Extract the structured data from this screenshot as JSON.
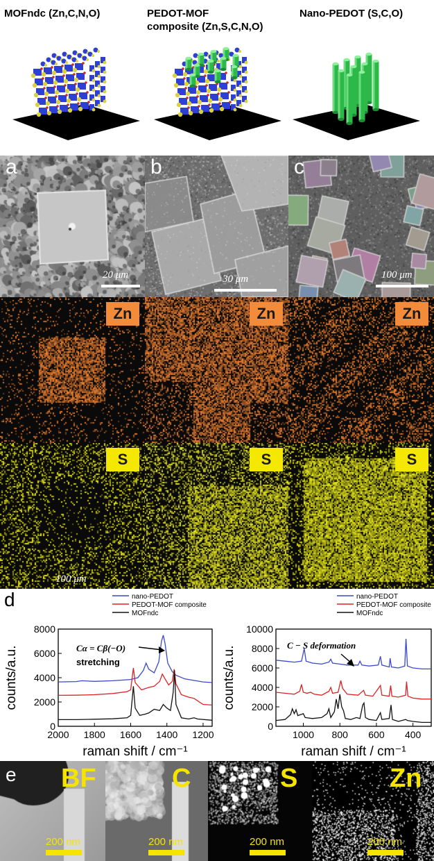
{
  "schematic": {
    "mof_label": "MOFndc (Zn,C,N,O)",
    "composite_label_line1": "PEDOT-MOF",
    "composite_label_line2": "composite (Zn,S,C,N,O)",
    "nano_label": "Nano-PEDOT (S,C,O)",
    "colors": {
      "frame": "#2e3fd6",
      "node": "#d9d23a",
      "linker": "#cc2a2a",
      "pedot": "#2db84a",
      "substrate": "#000000"
    }
  },
  "sem": {
    "panels": [
      {
        "letter": "a",
        "scale": "20 μm"
      },
      {
        "letter": "b",
        "scale": "30 μm"
      },
      {
        "letter": "c",
        "scale": "100 μm"
      }
    ],
    "zn_badge": "Zn",
    "s_badge": "S",
    "map_scale": "100 μm"
  },
  "raman": {
    "panel_letter": "d",
    "chart_data": [
      {
        "type": "line",
        "xlabel": "raman shift / cm⁻¹",
        "ylabel": "counts/a.u.",
        "xlim": [
          2000,
          1150
        ],
        "ylim": [
          0,
          8000
        ],
        "xticks": [
          2000,
          1800,
          1600,
          1400,
          1200
        ],
        "yticks": [
          0,
          2000,
          4000,
          6000,
          8000
        ],
        "annotation_line1": "Cα = Cβ(−O)",
        "annotation_line2": "stretching",
        "legend": [
          "nano-PEDOT",
          "PEDOT-MOF composite",
          "MOFndc"
        ],
        "series": [
          {
            "name": "nano-PEDOT",
            "color": "#3a49c9",
            "points": [
              [
                2000,
                3650
              ],
              [
                1900,
                3680
              ],
              [
                1870,
                3750
              ],
              [
                1800,
                3700
              ],
              [
                1700,
                3750
              ],
              [
                1600,
                3850
              ],
              [
                1560,
                4000
              ],
              [
                1530,
                4600
              ],
              [
                1515,
                5200
              ],
              [
                1500,
                4700
              ],
              [
                1470,
                4400
              ],
              [
                1445,
                5300
              ],
              [
                1430,
                7000
              ],
              [
                1420,
                7500
              ],
              [
                1410,
                6800
              ],
              [
                1395,
                5200
              ],
              [
                1370,
                4500
              ],
              [
                1350,
                4200
              ],
              [
                1300,
                3900
              ],
              [
                1260,
                3800
              ],
              [
                1200,
                3650
              ],
              [
                1150,
                3600
              ]
            ]
          },
          {
            "name": "PEDOT-MOF composite",
            "color": "#e02020",
            "points": [
              [
                2000,
                2550
              ],
              [
                1900,
                2560
              ],
              [
                1800,
                2600
              ],
              [
                1700,
                2700
              ],
              [
                1620,
                2850
              ],
              [
                1600,
                3000
              ],
              [
                1585,
                4800
              ],
              [
                1575,
                3600
              ],
              [
                1540,
                3000
              ],
              [
                1500,
                3200
              ],
              [
                1470,
                3300
              ],
              [
                1440,
                3700
              ],
              [
                1425,
                4300
              ],
              [
                1410,
                3900
              ],
              [
                1390,
                3400
              ],
              [
                1370,
                3700
              ],
              [
                1360,
                4700
              ],
              [
                1350,
                3500
              ],
              [
                1320,
                2600
              ],
              [
                1280,
                2400
              ],
              [
                1250,
                2300
              ],
              [
                1200,
                1800
              ],
              [
                1150,
                1750
              ]
            ]
          },
          {
            "name": "MOFndc",
            "color": "#111111",
            "points": [
              [
                2000,
                550
              ],
              [
                1900,
                550
              ],
              [
                1800,
                580
              ],
              [
                1700,
                620
              ],
              [
                1620,
                700
              ],
              [
                1600,
                900
              ],
              [
                1585,
                3300
              ],
              [
                1575,
                1500
              ],
              [
                1550,
                900
              ],
              [
                1520,
                1000
              ],
              [
                1500,
                1100
              ],
              [
                1470,
                1400
              ],
              [
                1440,
                1300
              ],
              [
                1420,
                1800
              ],
              [
                1400,
                1500
              ],
              [
                1380,
                1300
              ],
              [
                1365,
                2800
              ],
              [
                1358,
                4600
              ],
              [
                1350,
                1800
              ],
              [
                1320,
                700
              ],
              [
                1280,
                600
              ],
              [
                1250,
                700
              ],
              [
                1230,
                600
              ],
              [
                1150,
                500
              ]
            ]
          }
        ]
      },
      {
        "type": "line",
        "xlabel": "raman shift / cm⁻¹",
        "ylabel": "counts/a.u.",
        "xlim": [
          1150,
          300
        ],
        "ylim": [
          0,
          10000
        ],
        "xticks": [
          1000,
          800,
          600,
          400
        ],
        "yticks": [
          0,
          2000,
          4000,
          6000,
          8000,
          10000
        ],
        "annotation_line1": "C − S deformation",
        "legend": [
          "nano-PEDOT",
          "PEDOT-MOF composite",
          "MOFndc"
        ],
        "series": [
          {
            "name": "nano-PEDOT",
            "color": "#3a49c9",
            "points": [
              [
                1150,
                6800
              ],
              [
                1100,
                6700
              ],
              [
                1050,
                6600
              ],
              [
                1010,
                6700
              ],
              [
                995,
                8000
              ],
              [
                985,
                6700
              ],
              [
                950,
                6500
              ],
              [
                900,
                6400
              ],
              [
                860,
                6600
              ],
              [
                850,
                6900
              ],
              [
                840,
                6500
              ],
              [
                800,
                6400
              ],
              [
                760,
                6300
              ],
              [
                700,
                6300
              ],
              [
                690,
                6700
              ],
              [
                680,
                6300
              ],
              [
                640,
                6200
              ],
              [
                590,
                6300
              ],
              [
                578,
                7200
              ],
              [
                570,
                6300
              ],
              [
                530,
                6100
              ],
              [
                525,
                7000
              ],
              [
                518,
                6100
              ],
              [
                480,
                6000
              ],
              [
                445,
                6200
              ],
              [
                438,
                9000
              ],
              [
                430,
                6200
              ],
              [
                400,
                6000
              ],
              [
                350,
                5900
              ],
              [
                300,
                5900
              ]
            ]
          },
          {
            "name": "PEDOT-MOF composite",
            "color": "#e02020",
            "points": [
              [
                1150,
                3500
              ],
              [
                1100,
                3400
              ],
              [
                1050,
                3300
              ],
              [
                1020,
                3600
              ],
              [
                1010,
                4300
              ],
              [
                1000,
                3500
              ],
              [
                980,
                3400
              ],
              [
                960,
                3500
              ],
              [
                940,
                3300
              ],
              [
                900,
                3200
              ],
              [
                860,
                3600
              ],
              [
                850,
                4000
              ],
              [
                840,
                3400
              ],
              [
                810,
                3500
              ],
              [
                795,
                4700
              ],
              [
                785,
                3900
              ],
              [
                760,
                3300
              ],
              [
                700,
                3200
              ],
              [
                670,
                3700
              ],
              [
                660,
                3200
              ],
              [
                620,
                3100
              ],
              [
                578,
                4200
              ],
              [
                570,
                3200
              ],
              [
                530,
                3100
              ],
              [
                522,
                4200
              ],
              [
                515,
                3100
              ],
              [
                480,
                3000
              ],
              [
                440,
                3200
              ],
              [
                435,
                4600
              ],
              [
                428,
                3100
              ],
              [
                400,
                2900
              ],
              [
                350,
                2800
              ],
              [
                300,
                2800
              ]
            ]
          },
          {
            "name": "MOFndc",
            "color": "#111111",
            "points": [
              [
                1150,
                600
              ],
              [
                1100,
                700
              ],
              [
                1070,
                1200
              ],
              [
                1060,
                1800
              ],
              [
                1050,
                1300
              ],
              [
                1040,
                1700
              ],
              [
                1030,
                1100
              ],
              [
                1000,
                1300
              ],
              [
                990,
                900
              ],
              [
                950,
                800
              ],
              [
                900,
                900
              ],
              [
                870,
                1300
              ],
              [
                860,
                1800
              ],
              [
                850,
                900
              ],
              [
                830,
                1500
              ],
              [
                820,
                2800
              ],
              [
                810,
                1800
              ],
              [
                800,
                3300
              ],
              [
                790,
                2000
              ],
              [
                780,
                1600
              ],
              [
                770,
                800
              ],
              [
                740,
                700
              ],
              [
                710,
                900
              ],
              [
                690,
                800
              ],
              [
                675,
                2200
              ],
              [
                668,
                2400
              ],
              [
                660,
                900
              ],
              [
                640,
                700
              ],
              [
                600,
                600
              ],
              [
                578,
                1400
              ],
              [
                570,
                700
              ],
              [
                530,
                800
              ],
              [
                520,
                2200
              ],
              [
                512,
                700
              ],
              [
                480,
                500
              ],
              [
                440,
                700
              ],
              [
                430,
                600
              ],
              [
                400,
                500
              ],
              [
                350,
                400
              ],
              [
                300,
                400
              ]
            ]
          }
        ]
      }
    ]
  },
  "tem": {
    "panel_letter": "e",
    "panels": [
      {
        "label": "BF",
        "scale": "200 nm"
      },
      {
        "label": "C",
        "scale": "200 nm"
      },
      {
        "label": "S",
        "scale": "200 nm"
      },
      {
        "label": "Zn",
        "scale": "200 nm"
      }
    ]
  }
}
